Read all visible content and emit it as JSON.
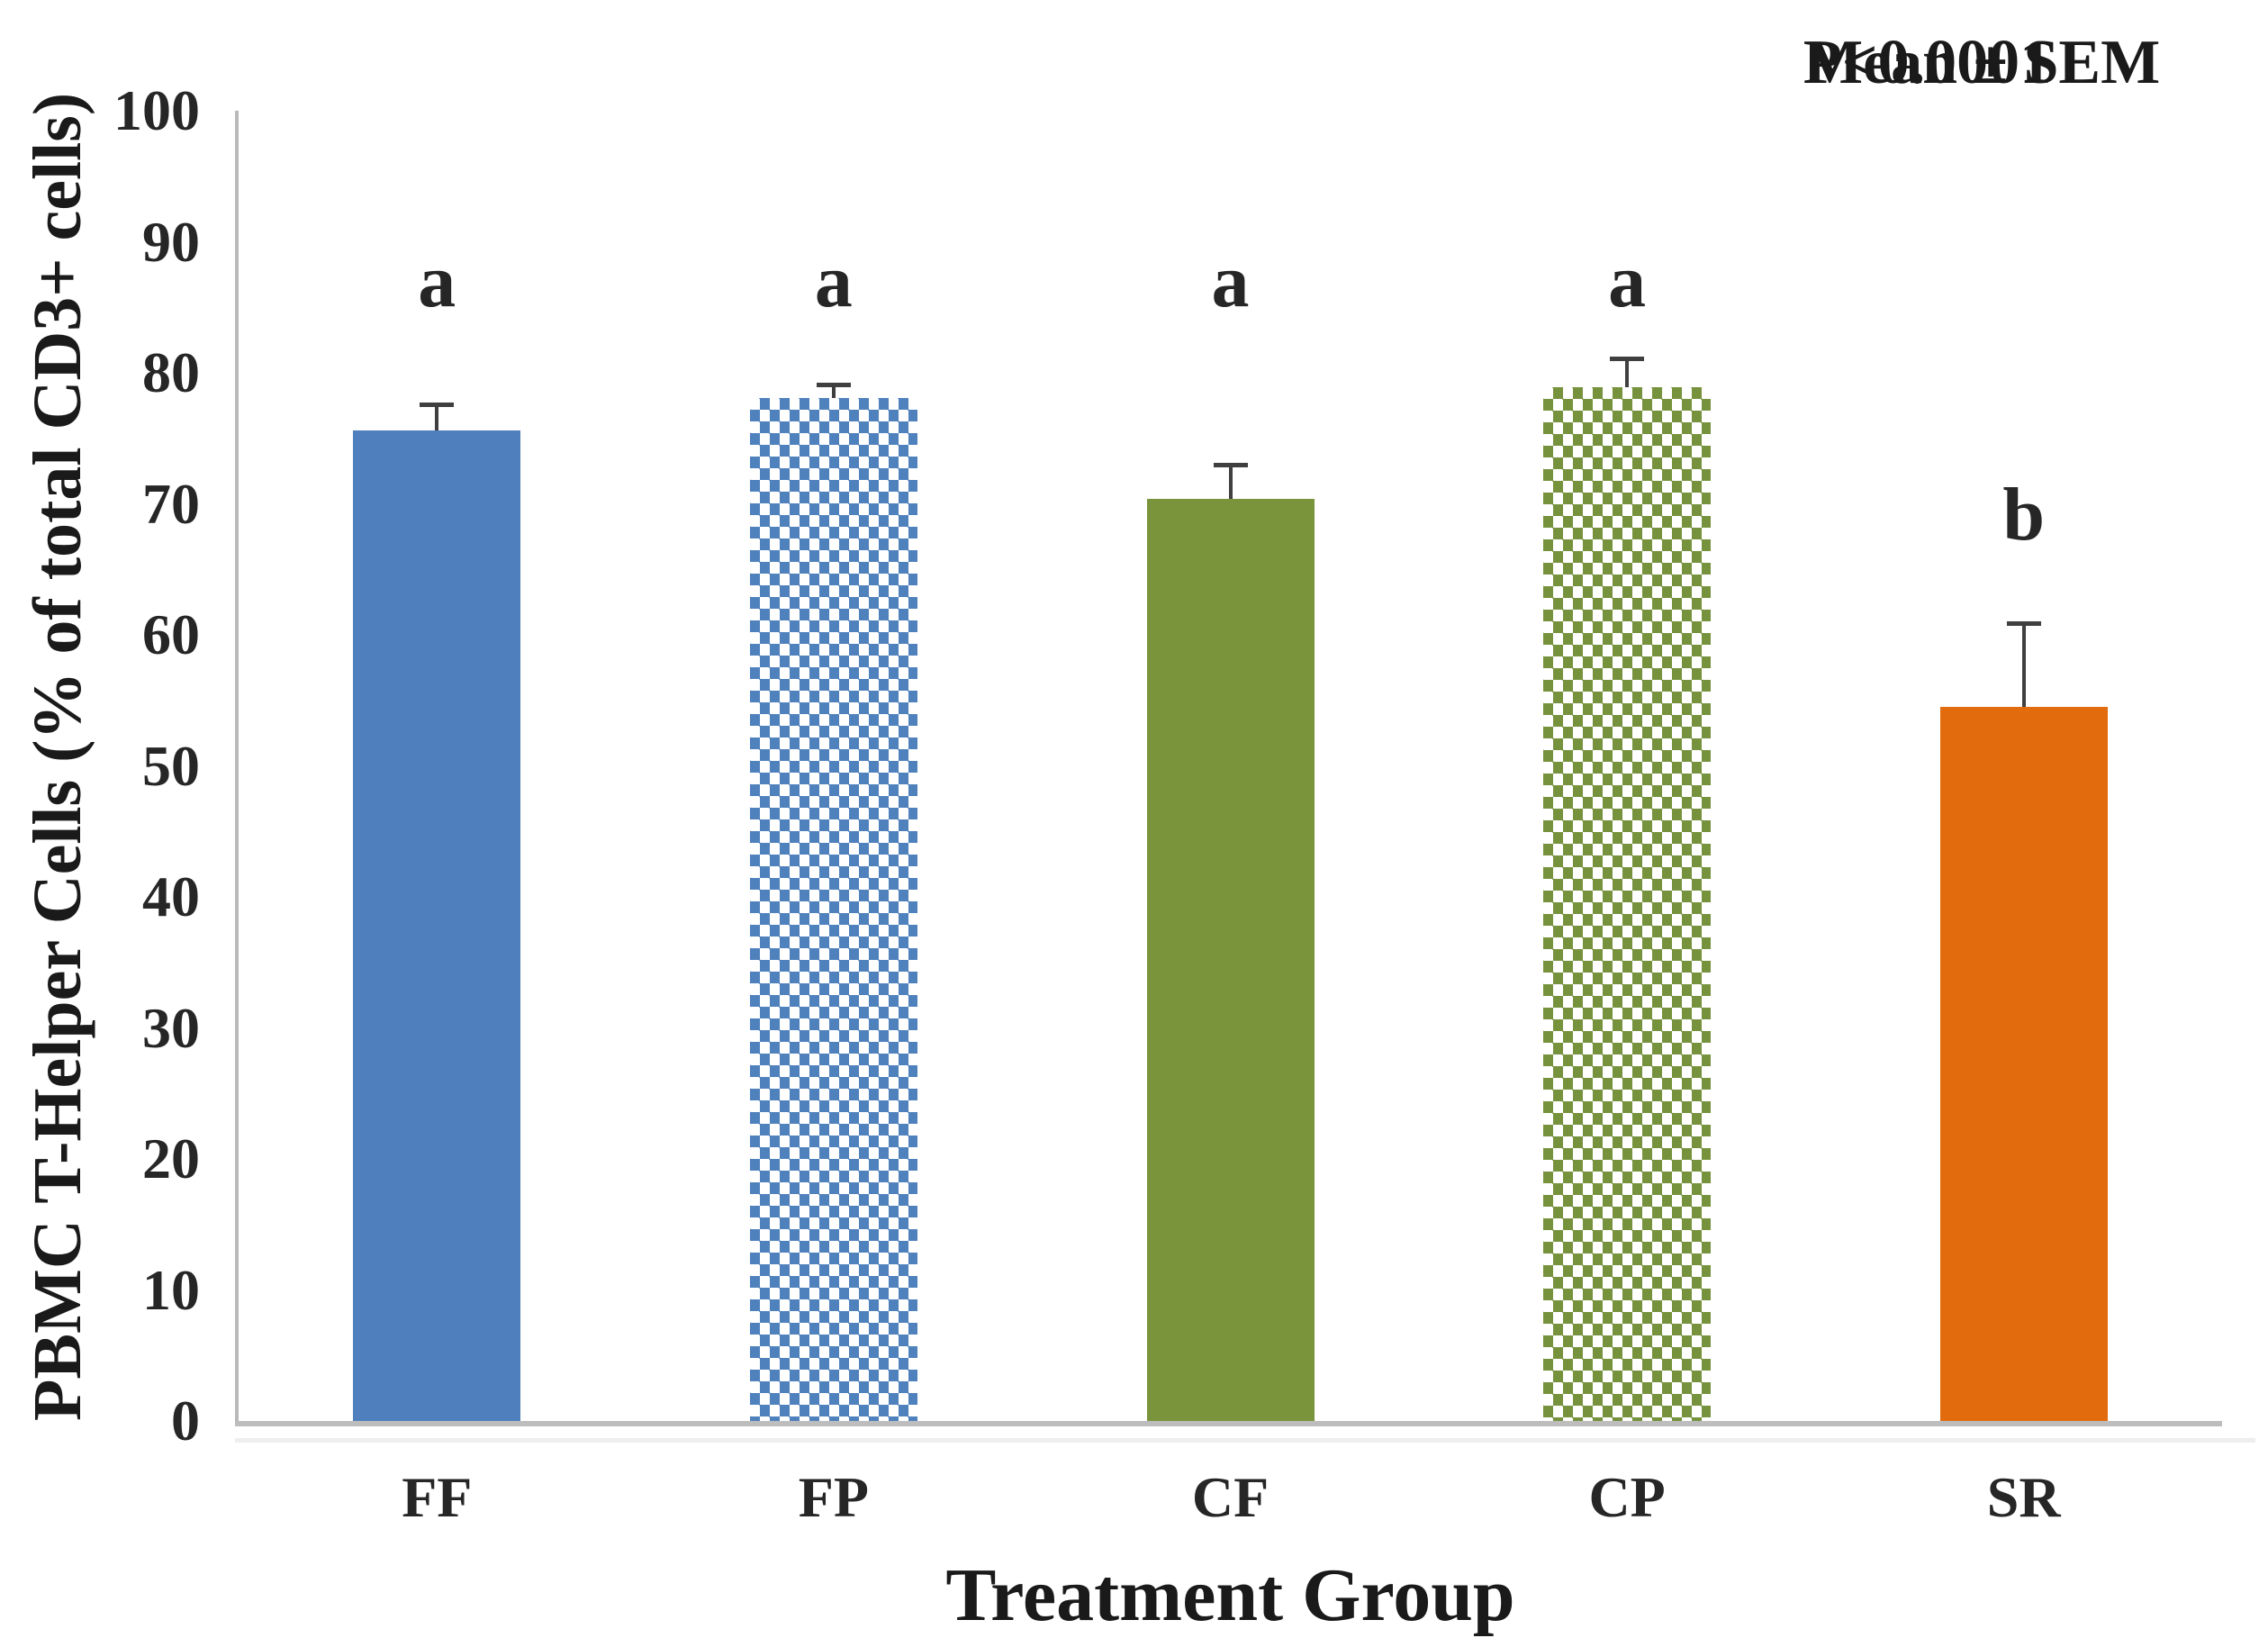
{
  "chart_data": {
    "type": "bar",
    "title": "",
    "xlabel": "Treatment Group",
    "ylabel": "PBMC T-Helper Cells (% of total CD3+ cells)",
    "ylim": [
      0,
      100
    ],
    "yticks": [
      0,
      10,
      20,
      30,
      40,
      50,
      60,
      70,
      80,
      90,
      100
    ],
    "grid": false,
    "legend": null,
    "annotation": {
      "line1": "P<0.0001",
      "line2": "Mean ± SEM"
    },
    "categories": [
      "FF",
      "FP",
      "CF",
      "CP",
      "SR"
    ],
    "values": [
      75.6,
      78.1,
      70.4,
      78.9,
      54.5
    ],
    "sem": [
      2.0,
      1.0,
      2.6,
      2.2,
      6.4
    ],
    "sig_letters": [
      "a",
      "a",
      "a",
      "a",
      "b"
    ],
    "bars": [
      {
        "label": "FF",
        "value": 75.6,
        "sem": 2.0,
        "letter": "a",
        "fill": "solid",
        "color": "#4f7fbc"
      },
      {
        "label": "FP",
        "value": 78.1,
        "sem": 1.0,
        "letter": "a",
        "fill": "checker",
        "color": "#4f81bd"
      },
      {
        "label": "CF",
        "value": 70.4,
        "sem": 2.6,
        "letter": "a",
        "fill": "solid",
        "color": "#7a943c"
      },
      {
        "label": "CP",
        "value": 78.9,
        "sem": 2.2,
        "letter": "a",
        "fill": "checker",
        "color": "#76923c"
      },
      {
        "label": "SR",
        "value": 54.5,
        "sem": 6.4,
        "letter": "b",
        "fill": "solid",
        "color": "#e26c0d"
      }
    ],
    "colors": {
      "axis_line": "#bdbdbd",
      "error_bar": "#3f3f3f",
      "text": "#1f1f1f",
      "background": "#ffffff"
    }
  }
}
